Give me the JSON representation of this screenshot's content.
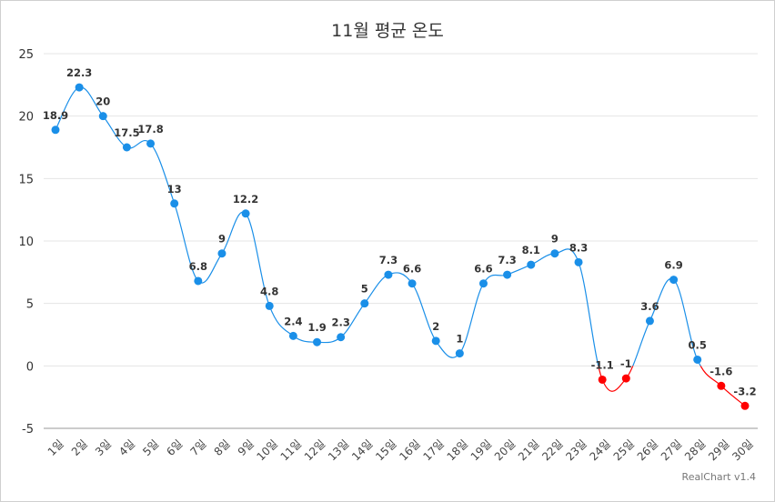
{
  "chart_data": {
    "type": "line",
    "title": "11월 평균 온도",
    "xlabel": "",
    "ylabel": "",
    "categories": [
      "1일",
      "2일",
      "3일",
      "4일",
      "5일",
      "6일",
      "7일",
      "8일",
      "9일",
      "10일",
      "11일",
      "12일",
      "13일",
      "14일",
      "15일",
      "16일",
      "17일",
      "18일",
      "19일",
      "20일",
      "21일",
      "22일",
      "23일",
      "24일",
      "25일",
      "26일",
      "27일",
      "28일",
      "29일",
      "30일"
    ],
    "series": [
      {
        "name": "평균 온도",
        "values": [
          18.9,
          22.3,
          20,
          17.5,
          17.8,
          13,
          6.8,
          9,
          12.2,
          4.8,
          2.4,
          1.9,
          2.3,
          5,
          7.3,
          6.6,
          2,
          1,
          6.6,
          7.3,
          8.1,
          9,
          8.3,
          -1.1,
          -1,
          3.6,
          6.9,
          0.5,
          -1.6,
          -3.2
        ]
      }
    ],
    "ylim": [
      -5,
      25
    ],
    "yticks": [
      -5,
      0,
      5,
      10,
      15,
      20,
      25
    ],
    "grid": true,
    "legend": "none",
    "colors": {
      "positive": "#1a8fe8",
      "negative": "#ff0000"
    },
    "credit": "RealChart v1.4"
  }
}
